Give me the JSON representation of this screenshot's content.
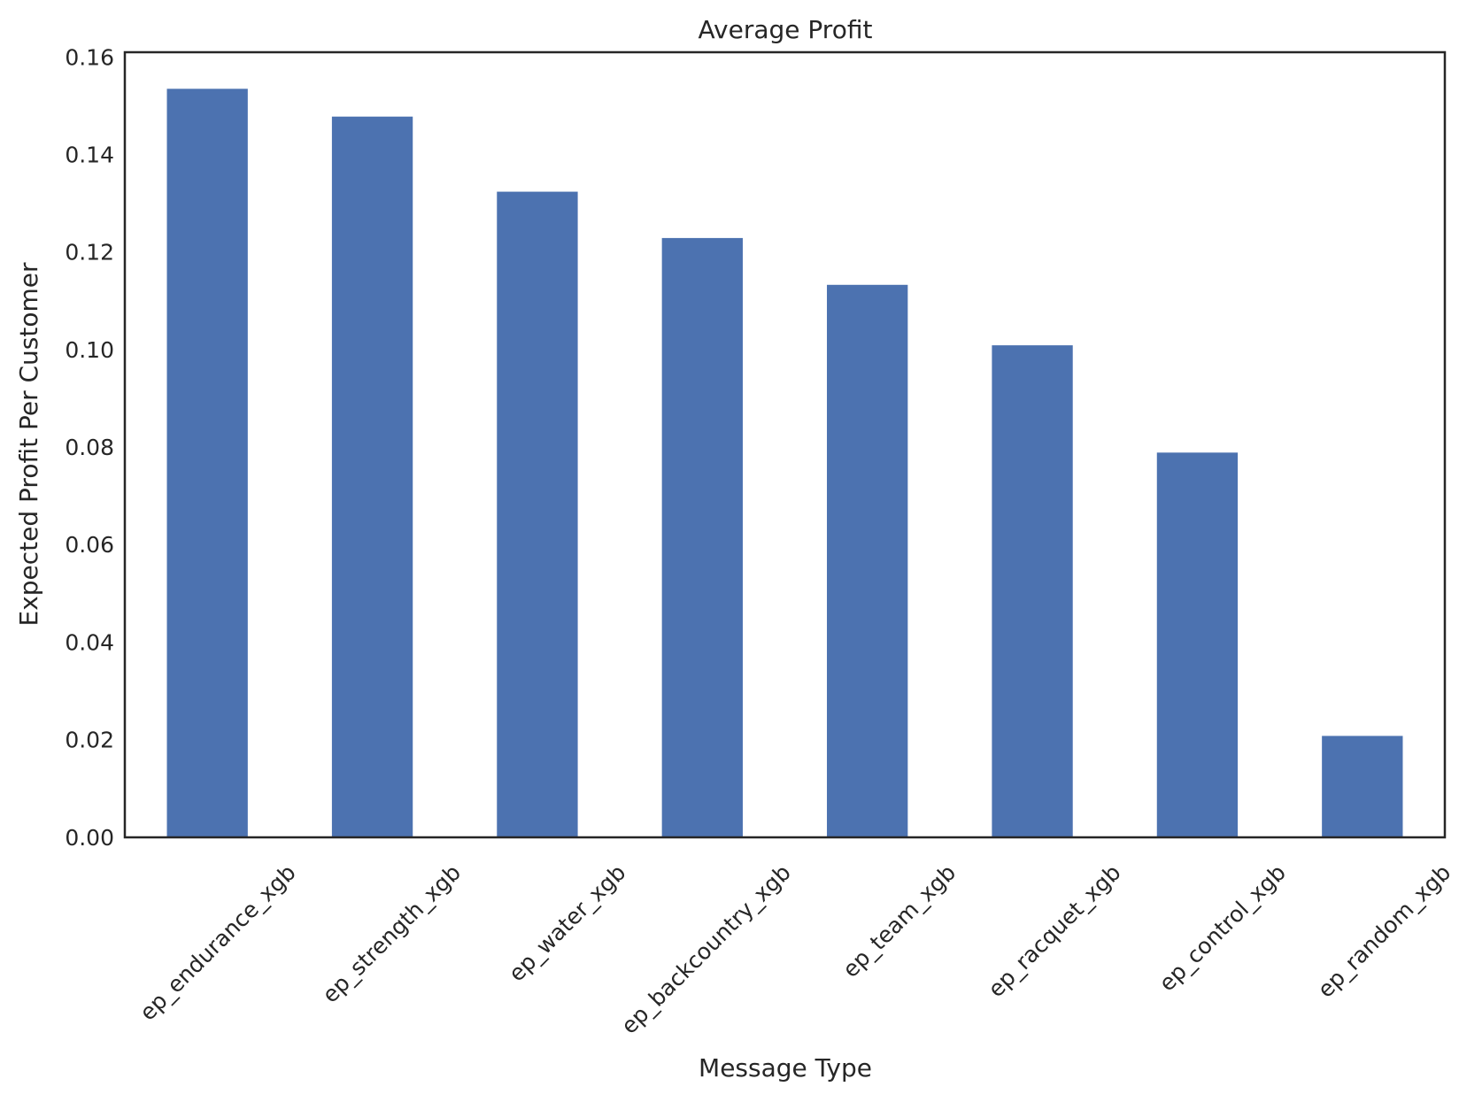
{
  "chart_data": {
    "type": "bar",
    "title": "Average Profit",
    "xlabel": "Message Type",
    "ylabel": "Expected Profit Per Customer",
    "categories": [
      "ep_endurance_xgb",
      "ep_strength_xgb",
      "ep_water_xgb",
      "ep_backcountry_xgb",
      "ep_team_xgb",
      "ep_racquet_xgb",
      "ep_control_xgb",
      "ep_random_xgb"
    ],
    "values": [
      0.1535,
      0.1478,
      0.1324,
      0.1229,
      0.1133,
      0.1009,
      0.0789,
      0.0208
    ],
    "ylim": [
      0,
      0.161
    ],
    "yticks": [
      "0.00",
      "0.02",
      "0.04",
      "0.06",
      "0.08",
      "0.10",
      "0.12",
      "0.14",
      "0.16"
    ],
    "grid": false,
    "legend": "none",
    "bar_color": "#4c72b0",
    "axis_color": "#262626"
  }
}
